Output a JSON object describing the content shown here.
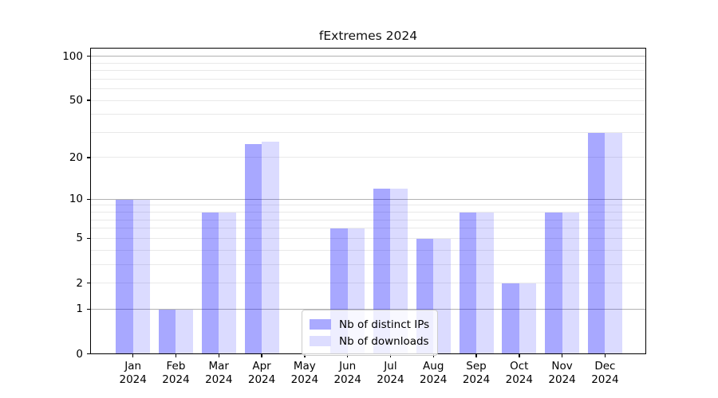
{
  "title": "fExtremes 2024",
  "chart_data": {
    "type": "bar",
    "title": "fExtremes 2024",
    "categories": [
      "Jan",
      "Feb",
      "Mar",
      "Apr",
      "May",
      "Jun",
      "Jul",
      "Aug",
      "Sep",
      "Oct",
      "Nov",
      "Dec"
    ],
    "year": "2024",
    "series": [
      {
        "name": "Nb of distinct IPs",
        "color": "#0000ff",
        "alpha": 0.34,
        "values": [
          10,
          1,
          8,
          25,
          0,
          6,
          12,
          5,
          8,
          2,
          8,
          30
        ]
      },
      {
        "name": "Nb of downloads",
        "color": "#0000ff",
        "alpha": 0.14,
        "values": [
          10,
          1,
          8,
          26,
          0,
          6,
          12,
          5,
          8,
          2,
          8,
          30
        ]
      }
    ],
    "xlabel": "",
    "ylabel": "",
    "y_scale": "log1p",
    "ylim": [
      0,
      115
    ],
    "y_ticks": [
      0,
      1,
      2,
      5,
      10,
      20,
      50,
      100
    ],
    "grid_major": [
      1,
      10,
      100
    ],
    "grid_minor": [
      2,
      3,
      4,
      6,
      7,
      8,
      9,
      20,
      30,
      40,
      60,
      70,
      80,
      90
    ],
    "grid_minor_labeled": [
      5,
      50
    ],
    "legend_position": "lower center",
    "legend_swatch_colors": [
      "#aaaaff",
      "#ddddff"
    ],
    "grid_major_color": "#b2b2b2",
    "grid_minor_color": "#e9e9e9",
    "spine_color": "#000000",
    "background_color": "#ffffff"
  }
}
